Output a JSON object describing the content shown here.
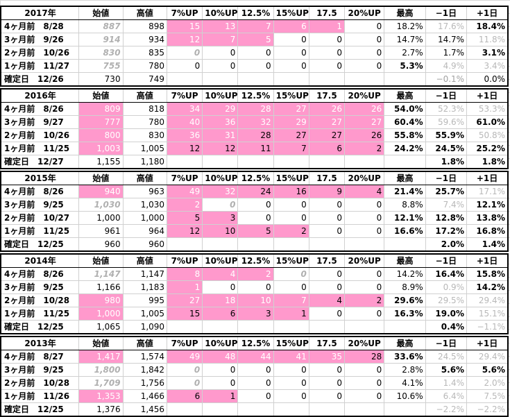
{
  "headers": [
    "始値",
    "高値",
    "7%UP",
    "10%UP",
    "12.5%",
    "15%UP",
    "17.5",
    "20%UP",
    "最高",
    "−1日",
    "+1日"
  ],
  "blocks": [
    {
      "year": "2017年",
      "rows": [
        [
          "4ヶ月前　8/28",
          "887",
          "898",
          "15",
          "13",
          "7",
          "6",
          "1",
          "0",
          "18.2%",
          "17.6%",
          "18.4%"
        ],
        [
          "3ヶ月前　9/26",
          "914",
          "934",
          "12",
          "7",
          "5",
          "0",
          "0",
          "0",
          "14.7%",
          "14.7%",
          "11.8%"
        ],
        [
          "2ヶ月前　10/26",
          "830",
          "835",
          "0",
          "0",
          "0",
          "0",
          "0",
          "0",
          "2.7%",
          "1.7%",
          "3.1%"
        ],
        [
          "1ヶ月前　11/27",
          "755",
          "780",
          "0",
          "0",
          "0",
          "0",
          "0",
          "0",
          "5.3%",
          "4.9%",
          "3.4%"
        ],
        [
          "確定日　12/26",
          "730",
          "749",
          "",
          "",
          "",
          "",
          "",
          "",
          "",
          "−0.1%",
          "0.0%"
        ]
      ]
    },
    {
      "year": "2016年",
      "rows": [
        [
          "4ヶ月前　8/26",
          "809",
          "818",
          "34",
          "29",
          "28",
          "27",
          "26",
          "26",
          "54.0%",
          "52.3%",
          "53.3%"
        ],
        [
          "3ヶ月前　9/27",
          "777",
          "780",
          "40",
          "36",
          "32",
          "29",
          "27",
          "27",
          "60.4%",
          "59.6%",
          "61.0%"
        ],
        [
          "2ヶ月前　10/26",
          "800",
          "830",
          "36",
          "31",
          "28",
          "27",
          "27",
          "26",
          "55.8%",
          "55.9%",
          "50.8%"
        ],
        [
          "1ヶ月前　11/25",
          "1,003",
          "1,005",
          "12",
          "12",
          "11",
          "7",
          "6",
          "2",
          "24.2%",
          "24.5%",
          "25.2%"
        ],
        [
          "確定日　12/27",
          "1,155",
          "1,180",
          "",
          "",
          "",
          "",
          "",
          "",
          "",
          "1.8%",
          "1.8%"
        ]
      ]
    },
    {
      "year": "2015年",
      "rows": [
        [
          "4ヶ月前　8/26",
          "940",
          "963",
          "49",
          "32",
          "24",
          "16",
          "9",
          "4",
          "21.4%",
          "25.7%",
          "17.1%"
        ],
        [
          "3ヶ月前　9/25",
          "1,030",
          "1,030",
          "2",
          "0",
          "0",
          "0",
          "0",
          "0",
          "8.8%",
          "7.4%",
          "12.1%"
        ],
        [
          "2ヶ月前　10/27",
          "1,000",
          "1,000",
          "5",
          "3",
          "0",
          "0",
          "0",
          "0",
          "12.1%",
          "12.8%",
          "13.8%"
        ],
        [
          "1ヶ月前　11/25",
          "961",
          "964",
          "12",
          "10",
          "5",
          "2",
          "0",
          "0",
          "16.6%",
          "17.2%",
          "16.8%"
        ],
        [
          "確定日　12/25",
          "960",
          "960",
          "",
          "",
          "",
          "",
          "",
          "",
          "",
          "2.0%",
          "1.4%"
        ]
      ]
    },
    {
      "year": "2014年",
      "rows": [
        [
          "4ヶ月前　8/26",
          "1,147",
          "1,147",
          "8",
          "4",
          "2",
          "0",
          "0",
          "0",
          "14.2%",
          "16.4%",
          "15.8%"
        ],
        [
          "3ヶ月前　9/25",
          "1,166",
          "1,183",
          "1",
          "0",
          "0",
          "0",
          "0",
          "0",
          "8.9%",
          "0.9%",
          "14.2%"
        ],
        [
          "2ヶ月前　10/28",
          "980",
          "995",
          "27",
          "18",
          "10",
          "7",
          "4",
          "2",
          "29.6%",
          "29.5%",
          "29.4%"
        ],
        [
          "1ヶ月前　11/25",
          "1,000",
          "1,005",
          "15",
          "6",
          "3",
          "1",
          "0",
          "0",
          "16.3%",
          "19.0%",
          "15.1%"
        ],
        [
          "確定日　12/25",
          "1,065",
          "1,090",
          "",
          "",
          "",
          "",
          "",
          "",
          "",
          "0.4%",
          "−1.1%"
        ]
      ]
    },
    {
      "year": "2013年",
      "rows": [
        [
          "4ヶ月前　8/27",
          "1,417",
          "1,574",
          "49",
          "48",
          "44",
          "41",
          "35",
          "28",
          "33.6%",
          "24.5%",
          "29.4%"
        ],
        [
          "3ヶ月前　9/25",
          "1,800",
          "1,842",
          "0",
          "0",
          "0",
          "0",
          "0",
          "0",
          "2.8%",
          "5.6%",
          "5.6%"
        ],
        [
          "2ヶ月前　10/28",
          "1,709",
          "1,756",
          "0",
          "0",
          "0",
          "0",
          "0",
          "0",
          "4.1%",
          "1.4%",
          "2.0%"
        ],
        [
          "1ヶ月前　11/26",
          "1,353",
          "1,466",
          "6",
          "1",
          "0",
          "0",
          "0",
          "0",
          "10.6%",
          "6.4%",
          "7.5%"
        ],
        [
          "確定日　12/25",
          "1,376",
          "1,456",
          "",
          "",
          "",
          "",
          "",
          "",
          "",
          "−2.2%",
          "−2.2%"
        ]
      ]
    }
  ],
  "colors": {
    "highlight": "#ff99cc",
    "grid": "#d8d8d8",
    "muted": "#b0b0b0"
  }
}
